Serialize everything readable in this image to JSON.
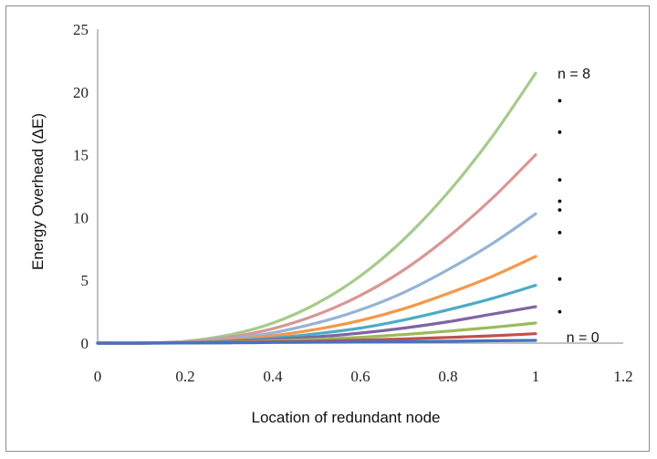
{
  "chart_data": {
    "type": "line",
    "title": "",
    "xlabel": "Location of redundant node",
    "ylabel": "Energy Overhead (ΔE)",
    "xlim": [
      0,
      1.2
    ],
    "ylim": [
      0,
      25
    ],
    "x_ticks": [
      0,
      0.2,
      0.4,
      0.6,
      0.8,
      1,
      1.2
    ],
    "x_tick_labels": [
      "0",
      "0.2",
      "0.4",
      "0.6",
      "0.8",
      "1",
      "1.2"
    ],
    "y_ticks": [
      0,
      5,
      10,
      15,
      20,
      25
    ],
    "y_tick_labels": [
      "0",
      "5",
      "10",
      "15",
      "20",
      "25"
    ],
    "grid": false,
    "legend": "none",
    "x": [
      0,
      0.1,
      0.2,
      0.3,
      0.4,
      0.5,
      0.6,
      0.7,
      0.8,
      0.9,
      1.0
    ],
    "series": [
      {
        "color": "#4472c4",
        "values": [
          0,
          0.0,
          0.01,
          0.02,
          0.05,
          0.07,
          0.09,
          0.12,
          0.15,
          0.19,
          0.22
        ]
      },
      {
        "color": "#c0504d",
        "values": [
          0,
          0.0,
          0.01,
          0.04,
          0.1,
          0.16,
          0.24,
          0.33,
          0.45,
          0.58,
          0.75
        ]
      },
      {
        "color": "#9bbb59",
        "values": [
          0,
          0.0,
          0.02,
          0.07,
          0.18,
          0.3,
          0.46,
          0.68,
          0.95,
          1.25,
          1.6
        ]
      },
      {
        "color": "#8064a2",
        "values": [
          0,
          0.0,
          0.03,
          0.12,
          0.28,
          0.5,
          0.8,
          1.2,
          1.7,
          2.3,
          2.9
        ]
      },
      {
        "color": "#4bacc6",
        "values": [
          0,
          0.0,
          0.04,
          0.17,
          0.4,
          0.75,
          1.2,
          1.85,
          2.65,
          3.55,
          4.6
        ]
      },
      {
        "color": "#f79646",
        "values": [
          0,
          0.0,
          0.06,
          0.24,
          0.58,
          1.1,
          1.8,
          2.75,
          3.95,
          5.3,
          6.9
        ]
      },
      {
        "color": "#95b3d7",
        "values": [
          0,
          0.0,
          0.08,
          0.34,
          0.82,
          1.6,
          2.65,
          4.05,
          5.85,
          7.9,
          10.3
        ]
      },
      {
        "color": "#d99694",
        "values": [
          0,
          0.0,
          0.11,
          0.47,
          1.15,
          2.25,
          3.8,
          5.85,
          8.45,
          11.5,
          15.0
        ]
      },
      {
        "color": "#a6cb8a",
        "values": [
          0,
          0.0,
          0.15,
          0.65,
          1.6,
          3.15,
          5.35,
          8.3,
          12.0,
          16.4,
          21.5
        ]
      }
    ],
    "annotations": [
      {
        "text": "n = 8",
        "x": 1.05,
        "y": 21.5
      },
      {
        "text": "n = 0",
        "x": 1.07,
        "y": 0.5
      }
    ],
    "dot_markers": [
      {
        "x": 1.055,
        "y": 19.3
      },
      {
        "x": 1.055,
        "y": 16.8
      },
      {
        "x": 1.055,
        "y": 13.0
      },
      {
        "x": 1.055,
        "y": 11.3
      },
      {
        "x": 1.055,
        "y": 10.6
      },
      {
        "x": 1.055,
        "y": 8.8
      },
      {
        "x": 1.055,
        "y": 5.1
      },
      {
        "x": 1.055,
        "y": 2.5
      }
    ]
  }
}
